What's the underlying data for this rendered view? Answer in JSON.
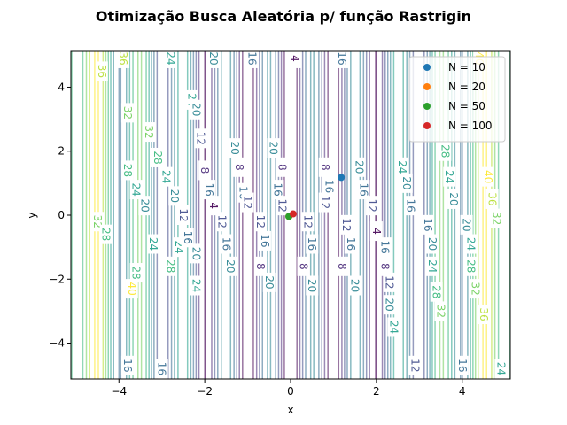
{
  "chart_data": {
    "type": "scatter",
    "title": "Otimização Busca Aleatória p/ função Rastrigin",
    "xlabel": "x",
    "ylabel": "y",
    "xlim": [
      -5.12,
      5.12
    ],
    "ylim": [
      -5.12,
      5.12
    ],
    "x_ticks": [
      -4,
      -2,
      0,
      2,
      4
    ],
    "y_ticks": [
      -4,
      -2,
      0,
      2,
      4
    ],
    "x_tick_labels": [
      "−4",
      "−2",
      "0",
      "2",
      "4"
    ],
    "y_tick_labels": [
      "−4",
      "−2",
      "0",
      "2",
      "4"
    ],
    "contour_levels": [
      4,
      8,
      12,
      16,
      20,
      24,
      28,
      32,
      36,
      40
    ],
    "contour_colors": [
      "#440154",
      "#482878",
      "#3e4989",
      "#31688e",
      "#26828e",
      "#1f9e89",
      "#35b779",
      "#6ece58",
      "#b5de2b",
      "#fde725"
    ],
    "contour_alpha": 0.55,
    "contour_label_samples": [
      {
        "x": -4.5,
        "y": -0.2,
        "text": "32"
      },
      {
        "x": -4.3,
        "y": -0.6,
        "text": "28"
      },
      {
        "x": -3.8,
        "y": 3.2,
        "text": "32"
      },
      {
        "x": -3.8,
        "y": 1.4,
        "text": "28"
      },
      {
        "x": -3.6,
        "y": 0.8,
        "text": "24"
      },
      {
        "x": -3.4,
        "y": 0.3,
        "text": "20"
      },
      {
        "x": -3.6,
        "y": -1.8,
        "text": "28"
      },
      {
        "x": -3.2,
        "y": -0.9,
        "text": "24"
      },
      {
        "x": -3.7,
        "y": -2.3,
        "text": "40"
      },
      {
        "x": -3.3,
        "y": 2.6,
        "text": "32"
      },
      {
        "x": -3.1,
        "y": 1.8,
        "text": "28"
      },
      {
        "x": -2.9,
        "y": 1.2,
        "text": "24"
      },
      {
        "x": -2.7,
        "y": 0.6,
        "text": "20"
      },
      {
        "x": -2.5,
        "y": 0.0,
        "text": "12"
      },
      {
        "x": -2.8,
        "y": -1.6,
        "text": "28"
      },
      {
        "x": -2.6,
        "y": -1.0,
        "text": "24"
      },
      {
        "x": -2.4,
        "y": -0.7,
        "text": "16"
      },
      {
        "x": -2.2,
        "y": -1.2,
        "text": "20"
      },
      {
        "x": -2.2,
        "y": -2.2,
        "text": "24"
      },
      {
        "x": -2.3,
        "y": 3.6,
        "text": "24"
      },
      {
        "x": -2.2,
        "y": 3.3,
        "text": "20"
      },
      {
        "x": -2.1,
        "y": 2.4,
        "text": "12"
      },
      {
        "x": -2.0,
        "y": 1.4,
        "text": "8"
      },
      {
        "x": -1.9,
        "y": 0.8,
        "text": "16"
      },
      {
        "x": -1.8,
        "y": 0.3,
        "text": "4"
      },
      {
        "x": -1.6,
        "y": -0.2,
        "text": "12"
      },
      {
        "x": -1.5,
        "y": -0.9,
        "text": "16"
      },
      {
        "x": -1.4,
        "y": -1.6,
        "text": "20"
      },
      {
        "x": -1.3,
        "y": 2.1,
        "text": "20"
      },
      {
        "x": -1.2,
        "y": 1.5,
        "text": "8"
      },
      {
        "x": -1.1,
        "y": 0.7,
        "text": "16"
      },
      {
        "x": -1.0,
        "y": 0.4,
        "text": "12"
      },
      {
        "x": -0.7,
        "y": -0.2,
        "text": "12"
      },
      {
        "x": -0.6,
        "y": -0.8,
        "text": "16"
      },
      {
        "x": -0.7,
        "y": -1.6,
        "text": "8"
      },
      {
        "x": -0.5,
        "y": -2.1,
        "text": "20"
      },
      {
        "x": -0.4,
        "y": 2.1,
        "text": "20"
      },
      {
        "x": -0.2,
        "y": 1.5,
        "text": "8"
      },
      {
        "x": -0.3,
        "y": 0.8,
        "text": "16"
      },
      {
        "x": -0.2,
        "y": 0.3,
        "text": "12"
      },
      {
        "x": 0.4,
        "y": -0.2,
        "text": "12"
      },
      {
        "x": 0.5,
        "y": -0.9,
        "text": "16"
      },
      {
        "x": 0.3,
        "y": -1.6,
        "text": "8"
      },
      {
        "x": 0.5,
        "y": -2.2,
        "text": "20"
      },
      {
        "x": 0.8,
        "y": 1.5,
        "text": "8"
      },
      {
        "x": 0.9,
        "y": 0.9,
        "text": "16"
      },
      {
        "x": 0.8,
        "y": 0.4,
        "text": "12"
      },
      {
        "x": 1.3,
        "y": -0.3,
        "text": "12"
      },
      {
        "x": 1.4,
        "y": -0.9,
        "text": "16"
      },
      {
        "x": 1.2,
        "y": -1.6,
        "text": "8"
      },
      {
        "x": 1.5,
        "y": -2.2,
        "text": "20"
      },
      {
        "x": 1.6,
        "y": 1.5,
        "text": "20"
      },
      {
        "x": 1.7,
        "y": 0.8,
        "text": "16"
      },
      {
        "x": 1.9,
        "y": 0.3,
        "text": "12"
      },
      {
        "x": 2.0,
        "y": -0.5,
        "text": "4"
      },
      {
        "x": 2.2,
        "y": -1.0,
        "text": "16"
      },
      {
        "x": 2.2,
        "y": -1.6,
        "text": "8"
      },
      {
        "x": 2.3,
        "y": -2.1,
        "text": "12"
      },
      {
        "x": 2.3,
        "y": -2.8,
        "text": "20"
      },
      {
        "x": 2.4,
        "y": -3.5,
        "text": "24"
      },
      {
        "x": 2.6,
        "y": 1.5,
        "text": "24"
      },
      {
        "x": 2.7,
        "y": 1.0,
        "text": "20"
      },
      {
        "x": 2.8,
        "y": 0.3,
        "text": "16"
      },
      {
        "x": 3.2,
        "y": -0.3,
        "text": "16"
      },
      {
        "x": 3.3,
        "y": -0.9,
        "text": "20"
      },
      {
        "x": 3.3,
        "y": -1.6,
        "text": "24"
      },
      {
        "x": 3.4,
        "y": -2.4,
        "text": "28"
      },
      {
        "x": 3.5,
        "y": -3.0,
        "text": "32"
      },
      {
        "x": 3.6,
        "y": 2.0,
        "text": "28"
      },
      {
        "x": 3.7,
        "y": 1.2,
        "text": "24"
      },
      {
        "x": 3.8,
        "y": 0.5,
        "text": "20"
      },
      {
        "x": 4.1,
        "y": -0.3,
        "text": "20"
      },
      {
        "x": 4.2,
        "y": -0.9,
        "text": "24"
      },
      {
        "x": 4.2,
        "y": -1.6,
        "text": "28"
      },
      {
        "x": 4.3,
        "y": -2.3,
        "text": "32"
      },
      {
        "x": 4.5,
        "y": -3.1,
        "text": "36"
      },
      {
        "x": 4.6,
        "y": 1.2,
        "text": "40"
      },
      {
        "x": 4.7,
        "y": 0.5,
        "text": "36"
      },
      {
        "x": 4.8,
        "y": -0.1,
        "text": "32"
      },
      {
        "x": -4.4,
        "y": 4.5,
        "text": "36"
      },
      {
        "x": -3.9,
        "y": 4.9,
        "text": "36"
      },
      {
        "x": -2.8,
        "y": 4.9,
        "text": "24"
      },
      {
        "x": -1.8,
        "y": 4.9,
        "text": "20"
      },
      {
        "x": -0.9,
        "y": 4.9,
        "text": "16"
      },
      {
        "x": 0.1,
        "y": 4.9,
        "text": "4"
      },
      {
        "x": 1.2,
        "y": 4.9,
        "text": "16"
      },
      {
        "x": 4.4,
        "y": 4.9,
        "text": "40"
      },
      {
        "x": -3.8,
        "y": -4.7,
        "text": "16"
      },
      {
        "x": -3.0,
        "y": -4.8,
        "text": "16"
      },
      {
        "x": 2.9,
        "y": -4.7,
        "text": "12"
      },
      {
        "x": 4.0,
        "y": -4.7,
        "text": "16"
      },
      {
        "x": 4.9,
        "y": -4.8,
        "text": "24"
      }
    ],
    "series": [
      {
        "name": "N = 10",
        "color": "#1f77b4",
        "points": [
          [
            1.18,
            1.18
          ]
        ]
      },
      {
        "name": "N = 20",
        "color": "#ff7f0e",
        "points": [
          [
            -0.04,
            -0.04
          ]
        ]
      },
      {
        "name": "N = 50",
        "color": "#2ca02c",
        "points": [
          [
            -0.04,
            -0.04
          ]
        ]
      },
      {
        "name": "N = 100",
        "color": "#d62728",
        "points": [
          [
            0.06,
            0.04
          ]
        ]
      }
    ],
    "legend_position": "top-right",
    "grid": false
  }
}
